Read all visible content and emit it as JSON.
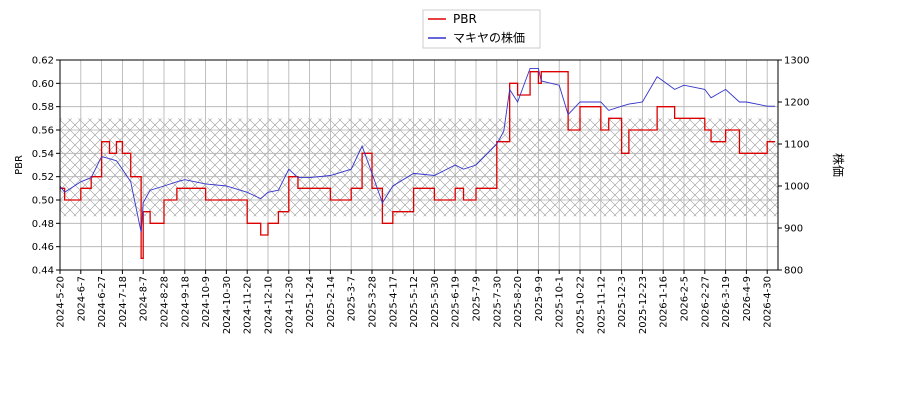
{
  "chart_data": {
    "type": "line",
    "ylabel": "PBR",
    "y2label": "株価",
    "ylim": [
      0.44,
      0.62
    ],
    "yticks": [
      0.44,
      0.46,
      0.48,
      {
        "value": 0.5,
        "label": "0.50"
      },
      0.52,
      0.54,
      0.56,
      0.58,
      {
        "value": 0.6,
        "label": "0.60"
      },
      0.62
    ],
    "y2lim": [
      800,
      1300
    ],
    "y2ticks": [
      800,
      900,
      1000,
      1100,
      1200,
      1300
    ],
    "xlim": [
      "2024-05-20",
      "2026-05-11"
    ],
    "xticks": [
      {
        "value": "2024-05-20",
        "label": "2024-5-20"
      },
      {
        "value": "2024-06-07",
        "label": "2024-6-7"
      },
      {
        "value": "2024-06-27",
        "label": "2024-6-27"
      },
      {
        "value": "2024-07-18",
        "label": "2024-7-18"
      },
      {
        "value": "2024-08-07",
        "label": "2024-8-7"
      },
      {
        "value": "2024-08-28",
        "label": "2024-8-28"
      },
      {
        "value": "2024-09-18",
        "label": "2024-9-18"
      },
      {
        "value": "2024-10-09",
        "label": "2024-10-9"
      },
      {
        "value": "2024-10-30",
        "label": "2024-10-30"
      },
      {
        "value": "2024-11-20",
        "label": "2024-11-20"
      },
      {
        "value": "2024-12-10",
        "label": "2024-12-10"
      },
      {
        "value": "2024-12-30",
        "label": "2024-12-30"
      },
      {
        "value": "2025-01-24",
        "label": "2025-1-24"
      },
      {
        "value": "2025-02-14",
        "label": "2025-2-14"
      },
      {
        "value": "2025-03-07",
        "label": "2025-3-7"
      },
      {
        "value": "2025-03-28",
        "label": "2025-3-28"
      },
      {
        "value": "2025-04-17",
        "label": "2025-4-17"
      },
      {
        "value": "2025-05-12",
        "label": "2025-5-12"
      },
      {
        "value": "2025-05-30",
        "label": "2025-5-30"
      },
      {
        "value": "2025-06-19",
        "label": "2025-6-19"
      },
      {
        "value": "2025-07-09",
        "label": "2025-7-9"
      },
      {
        "value": "2025-07-30",
        "label": "2025-7-30"
      },
      {
        "value": "2025-08-20",
        "label": "2025-8-20"
      },
      {
        "value": "2025-09-09",
        "label": "2025-9-9"
      },
      {
        "value": "2025-10-01",
        "label": "2025-10-1"
      },
      {
        "value": "2025-10-22",
        "label": "2025-10-22"
      },
      {
        "value": "2025-11-12",
        "label": "2025-11-12"
      },
      {
        "value": "2025-12-03",
        "label": "2025-12-3"
      },
      {
        "value": "2025-12-23",
        "label": "2025-12-23"
      },
      {
        "value": "2026-01-16",
        "label": "2026-1-16"
      },
      {
        "value": "2026-02-05",
        "label": "2026-2-5"
      },
      {
        "value": "2026-02-27",
        "label": "2026-2-27"
      },
      {
        "value": "2026-03-19",
        "label": "2026-3-19"
      },
      {
        "value": "2026-04-09",
        "label": "2026-4-9"
      },
      {
        "value": "2026-04-30",
        "label": "2026-4-30"
      }
    ],
    "grid": true,
    "legend": "top",
    "shaded_range": [
      0.486,
      0.57
    ],
    "x": [
      "2024-05-20",
      "2024-05-24",
      "2024-06-07",
      "2024-06-17",
      "2024-06-27",
      "2024-07-05",
      "2024-07-12",
      "2024-07-18",
      "2024-07-26",
      "2024-08-05",
      "2024-08-07",
      "2024-08-14",
      "2024-08-28",
      "2024-09-10",
      "2024-09-18",
      "2024-10-09",
      "2024-10-30",
      "2024-11-20",
      "2024-12-03",
      "2024-12-10",
      "2024-12-20",
      "2024-12-30",
      "2025-01-10",
      "2025-01-24",
      "2025-02-14",
      "2025-03-07",
      "2025-03-18",
      "2025-03-28",
      "2025-04-07",
      "2025-04-17",
      "2025-05-12",
      "2025-05-30",
      "2025-06-19",
      "2025-06-27",
      "2025-07-09",
      "2025-07-30",
      "2025-08-06",
      "2025-08-12",
      "2025-08-20",
      "2025-09-01",
      "2025-09-09",
      "2025-09-12",
      "2025-10-01",
      "2025-10-10",
      "2025-10-22",
      "2025-11-12",
      "2025-11-20",
      "2025-12-03",
      "2025-12-10",
      "2025-12-23",
      "2026-01-09",
      "2026-01-16",
      "2026-01-27",
      "2026-02-05",
      "2026-02-27",
      "2026-03-05",
      "2026-03-19",
      "2026-04-02",
      "2026-04-09",
      "2026-04-30",
      "2026-05-08"
    ],
    "series": [
      {
        "name": "PBR",
        "color": "#dd0000",
        "step": true,
        "values": [
          0.51,
          0.5,
          0.51,
          0.52,
          0.55,
          0.54,
          0.55,
          0.54,
          0.52,
          0.45,
          0.49,
          0.48,
          0.5,
          0.51,
          0.51,
          0.5,
          0.5,
          0.48,
          0.47,
          0.48,
          0.49,
          0.52,
          0.51,
          0.51,
          0.5,
          0.51,
          0.54,
          0.51,
          0.48,
          0.49,
          0.51,
          0.5,
          0.51,
          0.5,
          0.51,
          0.55,
          0.55,
          0.6,
          0.59,
          0.61,
          0.6,
          0.61,
          0.61,
          0.56,
          0.58,
          0.56,
          0.57,
          0.54,
          0.56,
          0.56,
          0.58,
          0.58,
          0.57,
          0.57,
          0.56,
          0.55,
          0.56,
          0.54,
          0.54,
          0.55,
          0.55
        ]
      },
      {
        "name": "マキヤの株価",
        "color": "#3333cc",
        "axis": "y2",
        "values": [
          1000,
          985,
          1010,
          1020,
          1070,
          1065,
          1060,
          1040,
          1010,
          890,
          960,
          990,
          1000,
          1010,
          1015,
          1005,
          1000,
          985,
          970,
          985,
          990,
          1040,
          1020,
          1020,
          1025,
          1040,
          1095,
          1030,
          960,
          1000,
          1030,
          1025,
          1050,
          1040,
          1050,
          1100,
          1130,
          1230,
          1200,
          1280,
          1280,
          1250,
          1240,
          1170,
          1200,
          1200,
          1180,
          1190,
          1195,
          1200,
          1260,
          1250,
          1230,
          1240,
          1230,
          1210,
          1230,
          1200,
          1200,
          1190,
          1190
        ]
      }
    ]
  }
}
